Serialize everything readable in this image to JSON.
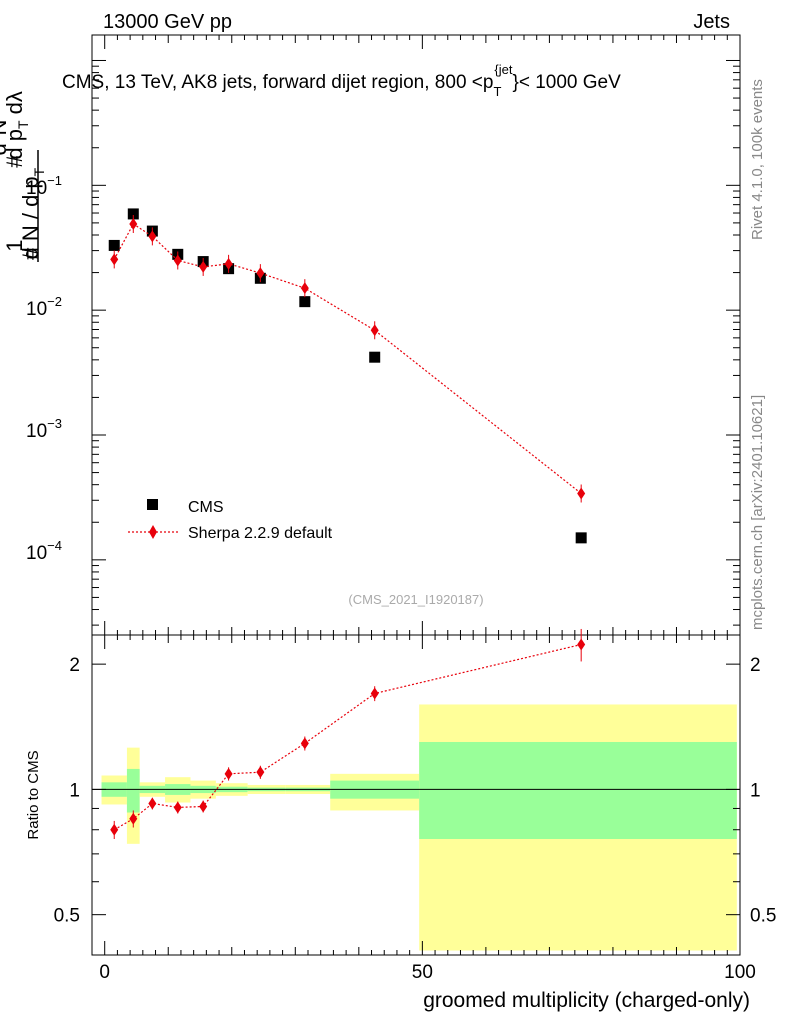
{
  "header": {
    "left": "13000 GeV pp",
    "right": "Jets"
  },
  "side": {
    "version": "Rivet 4.1.0,  100k events",
    "source": "mcplots.cern.ch [arXiv:2401.10621]"
  },
  "chart_data": [
    {
      "type": "scatter",
      "panel": "main",
      "title": "CMS, 13 TeV, AK8 jets, forward dijet region, 800 <p_T^{jet}< 1000 GeV",
      "title_parts": {
        "pre": "CMS, 13 TeV, AK8 jets, forward dijet region, 800 <p",
        "sub": "T",
        "sup": "{jet",
        "post": "}< 1000 GeV"
      },
      "ylabel": "1/dN/dp_T  d^2N/dp_T dλ",
      "yscale": "log",
      "xlim": [
        -2,
        100
      ],
      "ylim": [
        2.5e-05,
        1.6
      ],
      "y_ticks": [
        {
          "base": "10",
          "exp": "−1",
          "value": 0.1
        },
        {
          "base": "10",
          "exp": "−2",
          "value": 0.01
        },
        {
          "base": "10",
          "exp": "−3",
          "value": 0.001
        },
        {
          "base": "10",
          "exp": "−4",
          "value": 0.0001
        }
      ],
      "watermark": "(CMS_2021_I1920187)",
      "legend_position": "bottom-left",
      "series": [
        {
          "name": "CMS",
          "style": "black-square",
          "color": "#000000",
          "x": [
            1.5,
            4.5,
            7.5,
            11.5,
            15.5,
            19.5,
            24.5,
            31.5,
            42.5,
            75.0
          ],
          "y": [
            0.033,
            0.059,
            0.043,
            0.028,
            0.0245,
            0.0215,
            0.018,
            0.0117,
            0.0042,
            0.00015
          ]
        },
        {
          "name": "Sherpa 2.2.9 default",
          "style": "red-diamond-dotted",
          "color": "#e8000b",
          "x": [
            1.5,
            4.5,
            7.5,
            11.5,
            15.5,
            19.5,
            24.5,
            31.5,
            42.5,
            75.0
          ],
          "y": [
            0.0255,
            0.049,
            0.039,
            0.025,
            0.0222,
            0.0235,
            0.0198,
            0.015,
            0.0069,
            0.00034
          ]
        }
      ]
    },
    {
      "type": "line",
      "panel": "ratio",
      "ylabel": "Ratio to CMS",
      "xlabel": "groomed multiplicity (charged-only)",
      "yscale": "log",
      "xlim": [
        -2,
        100
      ],
      "ylim": [
        0.4,
        2.35
      ],
      "x_ticks": [
        {
          "label": "0",
          "value": 0
        },
        {
          "label": "50",
          "value": 50
        },
        {
          "label": "100",
          "value": 100
        }
      ],
      "y_ticks": [
        {
          "label": "0.5",
          "value": 0.5
        },
        {
          "label": "1",
          "value": 1
        },
        {
          "label": "2",
          "value": 2
        }
      ],
      "reference_line": 1.0,
      "bands": [
        {
          "x0": -0.5,
          "x1": 3.5,
          "green": [
            0.96,
            1.04
          ],
          "yellow": [
            0.92,
            1.08
          ]
        },
        {
          "x0": 3.5,
          "x1": 5.5,
          "green": [
            0.88,
            1.12
          ],
          "yellow": [
            0.74,
            1.26
          ]
        },
        {
          "x0": 5.5,
          "x1": 9.5,
          "green": [
            0.98,
            1.02
          ],
          "yellow": [
            0.96,
            1.04
          ]
        },
        {
          "x0": 9.5,
          "x1": 13.5,
          "green": [
            0.97,
            1.03
          ],
          "yellow": [
            0.93,
            1.07
          ]
        },
        {
          "x0": 13.5,
          "x1": 17.5,
          "green": [
            0.98,
            1.02
          ],
          "yellow": [
            0.95,
            1.05
          ]
        },
        {
          "x0": 17.5,
          "x1": 22.5,
          "green": [
            0.985,
            1.015
          ],
          "yellow": [
            0.965,
            1.035
          ]
        },
        {
          "x0": 22.5,
          "x1": 28.5,
          "green": [
            0.99,
            1.01
          ],
          "yellow": [
            0.975,
            1.025
          ]
        },
        {
          "x0": 28.5,
          "x1": 35.5,
          "green": [
            0.99,
            1.01
          ],
          "yellow": [
            0.975,
            1.025
          ]
        },
        {
          "x0": 35.5,
          "x1": 49.5,
          "green": [
            0.95,
            1.05
          ],
          "yellow": [
            0.89,
            1.09
          ]
        },
        {
          "x0": 49.5,
          "x1": 99.5,
          "green": [
            0.76,
            1.3
          ],
          "yellow": [
            0.41,
            1.6
          ]
        }
      ],
      "series": [
        {
          "name": "Sherpa 2.2.9 default / CMS",
          "color": "#e8000b",
          "x": [
            1.5,
            4.5,
            7.5,
            11.5,
            15.5,
            19.5,
            24.5,
            31.5,
            42.5,
            75.0
          ],
          "y": [
            0.8,
            0.85,
            0.925,
            0.905,
            0.91,
            1.09,
            1.1,
            1.29,
            1.7,
            2.23
          ],
          "err": [
            0.04,
            0.04,
            0.03,
            0.03,
            0.03,
            0.04,
            0.04,
            0.05,
            0.07,
            0.2
          ]
        }
      ]
    }
  ]
}
